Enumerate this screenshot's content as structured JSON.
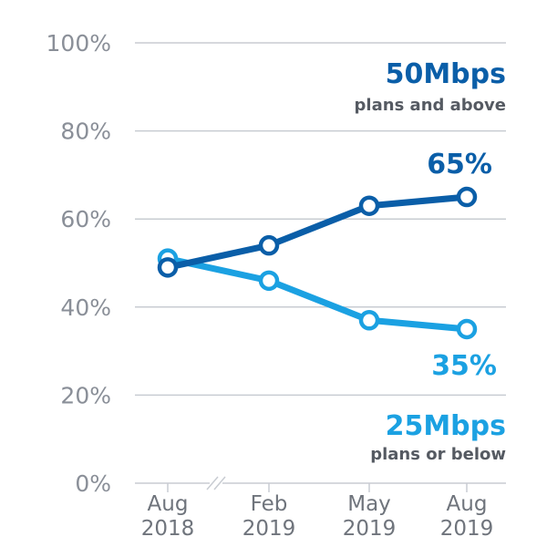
{
  "chart_data": {
    "type": "line",
    "title": "",
    "xlabel": "",
    "ylabel": "",
    "ylim": [
      0,
      100
    ],
    "yticks": [
      "0%",
      "20%",
      "40%",
      "60%",
      "80%",
      "100%"
    ],
    "ytick_values": [
      0,
      20,
      40,
      60,
      80,
      100
    ],
    "grid": true,
    "axis_break_after_first": true,
    "categories": [
      {
        "month": "Aug",
        "year": "2018"
      },
      {
        "month": "Feb",
        "year": "2019"
      },
      {
        "month": "May",
        "year": "2019"
      },
      {
        "month": "Aug",
        "year": "2019"
      }
    ],
    "series": [
      {
        "name": "50Mbps plans and above",
        "label_main": "50Mbps",
        "label_sub": "plans and above",
        "end_label": "65%",
        "color": "#0a5ea8",
        "values": [
          49,
          54,
          63,
          65
        ]
      },
      {
        "name": "25Mbps plans or below",
        "label_main": "25Mbps",
        "label_sub": "plans or below",
        "end_label": "35%",
        "color": "#1ba1e2",
        "values": [
          51,
          46,
          37,
          35
        ]
      }
    ]
  }
}
